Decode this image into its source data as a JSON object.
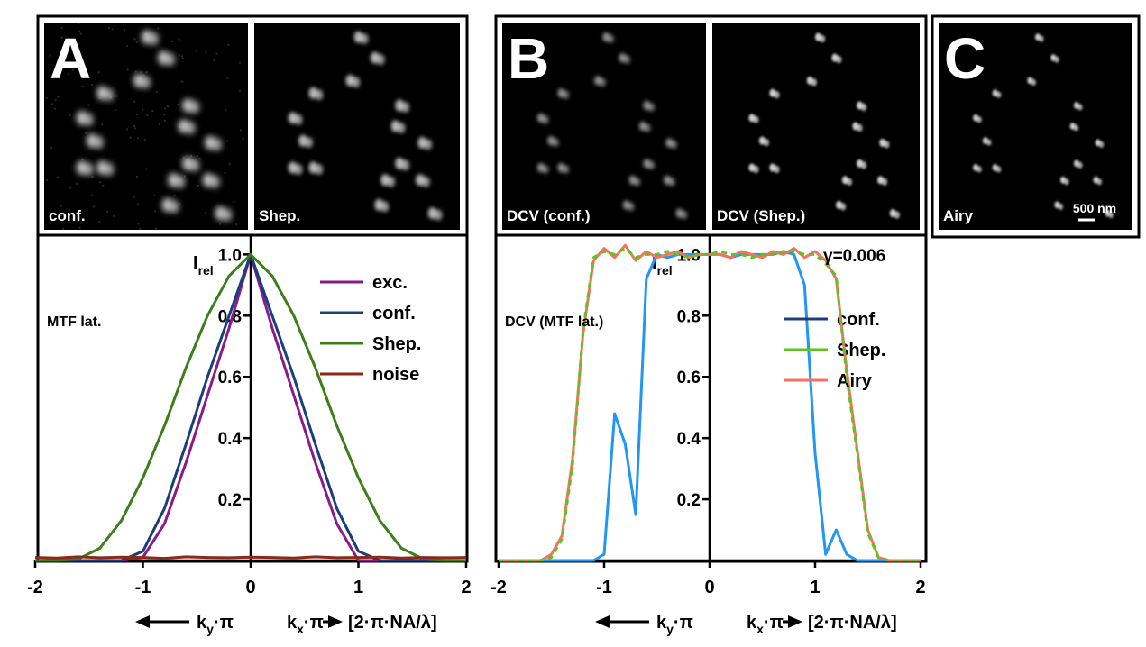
{
  "panels": {
    "A": {
      "letter": "A",
      "images": [
        "conf.",
        "Shep."
      ]
    },
    "B": {
      "letter": "B",
      "images": [
        "DCV (conf.)",
        "DCV (Shep.)"
      ]
    },
    "C": {
      "letter": "C",
      "images": [
        "Airy"
      ],
      "scale_bar": "500 nm"
    }
  },
  "chart_data": [
    {
      "type": "line",
      "annotations": [
        "MTF lat."
      ],
      "legend": "upper right",
      "y_label": {
        "base": "I",
        "sub": "rel"
      },
      "x_label": {
        "left": {
          "base": "k",
          "sub": "y",
          "tail": "·π"
        },
        "right": {
          "base": "k",
          "sub": "x",
          "tail": "·π"
        },
        "unit": "[2·π·NA/λ]"
      },
      "xlim": [
        -2,
        2
      ],
      "xticks": [
        -2,
        -1,
        0,
        1,
        2
      ],
      "ylim": [
        0,
        1.06
      ],
      "yticks": [
        0.2,
        0.4,
        0.6,
        0.8,
        {
          "value": 1,
          "label": "1.0"
        }
      ],
      "x": [
        -2,
        -1.8,
        -1.6,
        -1.4,
        -1.2,
        -1,
        -0.8,
        -0.6,
        -0.4,
        -0.2,
        0,
        0.2,
        0.4,
        0.6,
        0.8,
        1,
        1.2,
        1.4,
        1.6,
        1.8,
        2
      ],
      "series": [
        {
          "name": "exc.",
          "color": "#8b1a8b",
          "values": [
            0,
            0,
            0,
            0,
            0,
            0.01,
            0.12,
            0.32,
            0.54,
            0.76,
            1,
            0.76,
            0.54,
            0.32,
            0.12,
            0,
            0,
            0,
            0,
            0,
            0
          ]
        },
        {
          "name": "conf.",
          "color": "#1a3f7a",
          "values": [
            0,
            0,
            0,
            0,
            0,
            0.03,
            0.17,
            0.38,
            0.6,
            0.8,
            1,
            0.8,
            0.6,
            0.38,
            0.17,
            0.03,
            0,
            0,
            0,
            0,
            0
          ]
        },
        {
          "name": "Shep.",
          "color": "#3d7d1a",
          "values": [
            0,
            0,
            0.005,
            0.04,
            0.13,
            0.27,
            0.44,
            0.63,
            0.8,
            0.93,
            1,
            0.93,
            0.8,
            0.63,
            0.44,
            0.27,
            0.13,
            0.04,
            0.005,
            0,
            0
          ]
        },
        {
          "name": "noise",
          "color": "#8b2a1a",
          "values": [
            0.01,
            0.008,
            0.012,
            0.009,
            0.011,
            0.01,
            0.007,
            0.012,
            0.01,
            0.009,
            0.011,
            0.01,
            0.008,
            0.012,
            0.009,
            0.01,
            0.011,
            0.008,
            0.01,
            0.009,
            0.01
          ]
        }
      ]
    },
    {
      "type": "line",
      "annotations": [
        "DCV (MTF lat.)",
        "γ=0.006"
      ],
      "legend": "center right",
      "y_label": {
        "base": "I",
        "sub": "rel"
      },
      "x_label": {
        "left": {
          "base": "k",
          "sub": "y",
          "tail": "·π"
        },
        "right": {
          "base": "k",
          "sub": "x",
          "tail": "·π"
        },
        "unit": "[2·π·NA/λ]"
      },
      "xlim": [
        -2,
        2
      ],
      "xticks": [
        -2,
        -1,
        0,
        1,
        2
      ],
      "ylim": [
        0,
        1.06
      ],
      "yticks": [
        0.2,
        0.4,
        0.6,
        0.8,
        {
          "value": 1,
          "label": "1.0"
        }
      ],
      "x": [
        -2,
        -1.9,
        -1.8,
        -1.7,
        -1.6,
        -1.5,
        -1.4,
        -1.3,
        -1.2,
        -1.1,
        -1,
        -0.9,
        -0.8,
        -0.7,
        -0.6,
        -0.5,
        -0.4,
        -0.3,
        -0.2,
        -0.1,
        0,
        0.1,
        0.2,
        0.3,
        0.4,
        0.5,
        0.6,
        0.7,
        0.8,
        0.9,
        1,
        1.1,
        1.2,
        1.3,
        1.4,
        1.5,
        1.6,
        1.7,
        1.8,
        1.9,
        2
      ],
      "series": [
        {
          "name": "conf.",
          "color": "#2196f3",
          "legend_color": "#1a3f7a",
          "values": [
            0,
            0,
            0,
            0,
            0,
            0,
            0,
            0,
            0,
            0,
            0.02,
            0.48,
            0.38,
            0.15,
            0.92,
            1,
            0.99,
            1,
            1,
            1,
            1,
            1,
            0.99,
            1,
            1,
            1,
            1,
            1.01,
            1,
            0.9,
            0.35,
            0.02,
            0.1,
            0.02,
            0,
            0,
            0,
            0,
            0,
            0,
            0
          ]
        },
        {
          "name": "Shep.",
          "color": "#5fc21f",
          "dashed": true,
          "values": [
            0,
            0,
            0,
            0,
            0,
            0.01,
            0.07,
            0.31,
            0.75,
            0.99,
            1.01,
            1,
            1.02,
            0.99,
            1,
            1,
            1.01,
            1,
            0.99,
            1,
            1,
            1.01,
            1,
            1,
            0.99,
            1,
            1,
            1.01,
            1.01,
            1,
            1,
            0.97,
            0.93,
            0.6,
            0.35,
            0.09,
            0.01,
            0,
            0,
            0,
            0
          ]
        },
        {
          "name": "Airy",
          "color": "#f87060",
          "values": [
            0,
            0,
            0,
            0,
            0,
            0.02,
            0.08,
            0.33,
            0.74,
            0.98,
            1.02,
            0.99,
            1.03,
            0.98,
            1.01,
            0.99,
            1,
            1.01,
            0.99,
            1,
            1,
            1,
            0.99,
            1.01,
            1,
            0.99,
            1.01,
            1,
            1.02,
            0.99,
            1.01,
            0.98,
            0.92,
            0.62,
            0.36,
            0.1,
            0.01,
            0,
            0,
            0,
            0
          ]
        }
      ]
    }
  ]
}
